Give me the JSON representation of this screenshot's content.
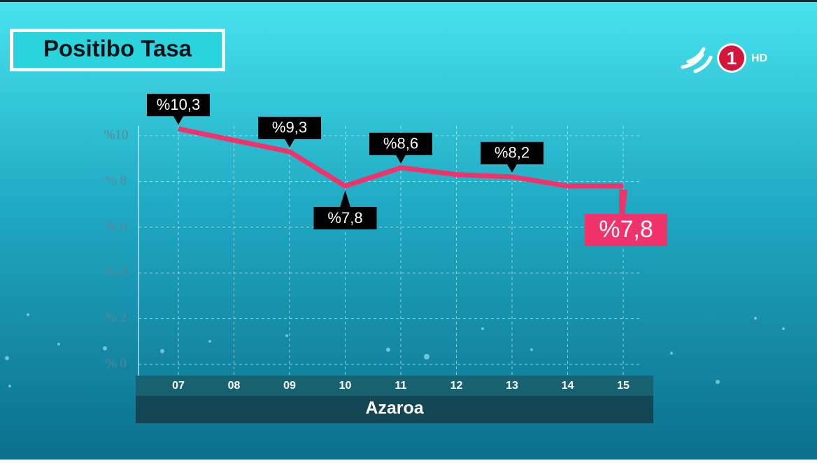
{
  "chart_data": {
    "type": "line",
    "title": "Positibo Tasa",
    "x_label": "Azaroa",
    "categories": [
      "07",
      "08",
      "09",
      "10",
      "11",
      "12",
      "13",
      "14",
      "15"
    ],
    "series": [
      {
        "name": null,
        "color": "#f0336a",
        "values": [
          10.3,
          9.8,
          9.3,
          7.8,
          8.6,
          8.3,
          8.2,
          7.8,
          7.8
        ],
        "value_labels": [
          "%10,3",
          null,
          "%9,3",
          "%7,8",
          "%8,6",
          null,
          "%8,2",
          null,
          "%7,8"
        ]
      }
    ],
    "ylim": [
      0,
      10
    ],
    "yticks": [
      {
        "value": 0,
        "label": "% 0"
      },
      {
        "value": 2,
        "label": "% 2"
      },
      {
        "value": 4,
        "label": "% 4"
      },
      {
        "value": 6,
        "label": "% 6"
      },
      {
        "value": 8,
        "label": "% 8"
      },
      {
        "value": 10,
        "label": "%10"
      }
    ],
    "grid": true
  },
  "channel_logo": {
    "number": "1",
    "label": "HD"
  }
}
